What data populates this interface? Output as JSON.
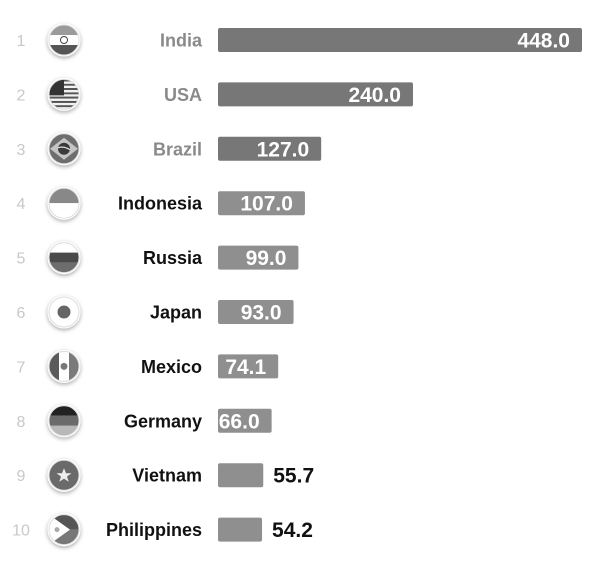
{
  "chart_data": {
    "type": "bar",
    "orientation": "horizontal",
    "title": "",
    "xlabel": "",
    "ylabel": "",
    "xlim": [
      0,
      448
    ],
    "grid": false,
    "legend": "none",
    "ranks": [
      "1",
      "2",
      "3",
      "4",
      "5",
      "6",
      "7",
      "8",
      "9",
      "10"
    ],
    "categories": [
      "India",
      "USA",
      "Brazil",
      "Indonesia",
      "Russia",
      "Japan",
      "Mexico",
      "Germany",
      "Vietnam",
      "Philippines"
    ],
    "values": [
      448.0,
      240.0,
      127.0,
      107.0,
      99.0,
      93.0,
      74.1,
      66.0,
      55.7,
      54.2
    ],
    "value_labels": [
      "448.0",
      "240.0",
      "127.0",
      "107.0",
      "99.0",
      "93.0",
      "74.1",
      "66.0",
      "55.7",
      "54.2"
    ],
    "flag_icons": [
      "india-flag-icon",
      "usa-flag-icon",
      "brazil-flag-icon",
      "indonesia-flag-icon",
      "russia-flag-icon",
      "japan-flag-icon",
      "mexico-flag-icon",
      "germany-flag-icon",
      "vietnam-flag-icon",
      "philippines-flag-icon"
    ],
    "colors": {
      "top3_bar": "#777777",
      "bar": "#8f8f8f",
      "top3_label": "#8a8a8a",
      "label": "#111111",
      "rank": "#c8c8c8",
      "value_inside": "#ffffff",
      "value_outside": "#111111"
    }
  }
}
